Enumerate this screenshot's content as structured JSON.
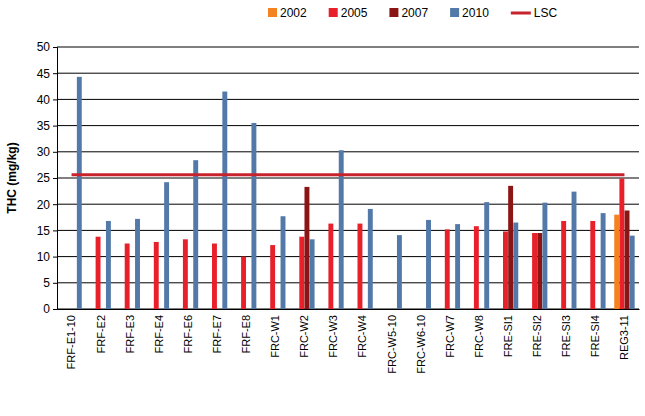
{
  "chart_data": {
    "type": "bar",
    "y_label": "THC (mg/kg)",
    "categories": [
      "FRF-E1-10",
      "FRF-E2",
      "FRF-E3",
      "FRF-E4",
      "FRF-E6",
      "FRF-E7",
      "FRF-E8",
      "FRC-W1",
      "FRC-W2",
      "FRC-W3",
      "FRC-W4",
      "FRC-W5-10",
      "FRC-W6-10",
      "FRC-W7",
      "FRC-W8",
      "FRE-SI1",
      "FRE-SI2",
      "FRE-SI3",
      "FRE-SI4",
      "REG3-11"
    ],
    "series": [
      {
        "name": "2002",
        "color": "#f58220",
        "type": "bar",
        "values": [
          null,
          null,
          null,
          null,
          null,
          null,
          null,
          null,
          null,
          null,
          null,
          null,
          null,
          null,
          null,
          null,
          null,
          null,
          null,
          18
        ]
      },
      {
        "name": "2005",
        "color": "#e8202a",
        "type": "bar",
        "values": [
          null,
          13.8,
          12.5,
          12.8,
          13.3,
          12.5,
          10,
          12.2,
          13.8,
          16.3,
          16.3,
          null,
          null,
          15.2,
          15.8,
          14.8,
          14.5,
          16.8,
          16.8,
          24.9
        ]
      },
      {
        "name": "2007",
        "color": "#8b1414",
        "type": "bar",
        "values": [
          null,
          null,
          null,
          null,
          null,
          null,
          null,
          null,
          23.3,
          null,
          null,
          null,
          null,
          null,
          null,
          23.5,
          14.5,
          null,
          null,
          18.8
        ]
      },
      {
        "name": "2010",
        "color": "#5279a8",
        "type": "bar",
        "values": [
          44.3,
          16.8,
          17.2,
          24.2,
          28.4,
          41.5,
          35.5,
          17.7,
          13.3,
          30.3,
          19.1,
          14.1,
          17,
          16.2,
          20.4,
          16.5,
          20.3,
          22.4,
          18.3,
          14
        ]
      },
      {
        "name": "LSC",
        "color": "#c8232c",
        "type": "line",
        "values": [
          25.6,
          25.6,
          25.6,
          25.6,
          25.6,
          25.6,
          25.6,
          25.6,
          25.6,
          25.6,
          25.6,
          25.6,
          25.6,
          25.6,
          25.6,
          25.6,
          25.6,
          25.6,
          25.6,
          25.6
        ]
      }
    ],
    "ylim": [
      0,
      50
    ],
    "yticks": [
      0,
      5,
      10,
      15,
      20,
      25,
      30,
      35,
      40,
      45,
      50
    ],
    "grid": true,
    "legend": "top"
  }
}
